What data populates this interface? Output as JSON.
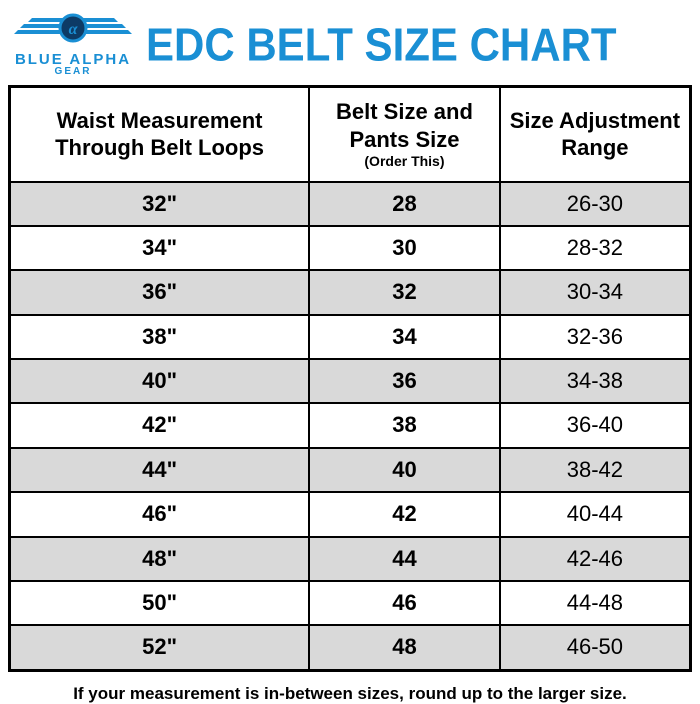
{
  "logo": {
    "top": "BLUE ALPHA",
    "bottom": "GEAR",
    "wing_color": "#1a8fd4",
    "circle_fill": "#0d3b66"
  },
  "title": "EDC BELT SIZE CHART",
  "title_color": "#1a8fd4",
  "table": {
    "type": "table",
    "border_color": "#000000",
    "row_odd_bg": "#d9d9d9",
    "row_even_bg": "#ffffff",
    "header_fontsize": 22,
    "cell_fontsize": 22,
    "columns": [
      {
        "label_line1": "Waist Measurement",
        "label_line2": "Through Belt Loops",
        "width_pct": 44,
        "bold_cells": true,
        "align": "center"
      },
      {
        "label_line1": "Belt Size and",
        "label_line2": "Pants Size",
        "sublabel": "(Order This)",
        "width_pct": 28,
        "bold_cells": true,
        "align": "center"
      },
      {
        "label_line1": "Size Adjustment",
        "label_line2": "Range",
        "width_pct": 28,
        "bold_cells": false,
        "align": "center"
      }
    ],
    "rows": [
      [
        "32\"",
        "28",
        "26-30"
      ],
      [
        "34\"",
        "30",
        "28-32"
      ],
      [
        "36\"",
        "32",
        "30-34"
      ],
      [
        "38\"",
        "34",
        "32-36"
      ],
      [
        "40\"",
        "36",
        "34-38"
      ],
      [
        "42\"",
        "38",
        "36-40"
      ],
      [
        "44\"",
        "40",
        "38-42"
      ],
      [
        "46\"",
        "42",
        "40-44"
      ],
      [
        "48\"",
        "44",
        "42-46"
      ],
      [
        "50\"",
        "46",
        "44-48"
      ],
      [
        "52\"",
        "48",
        "46-50"
      ]
    ]
  },
  "footnote": "If your measurement is in-between sizes, round up to the larger size."
}
